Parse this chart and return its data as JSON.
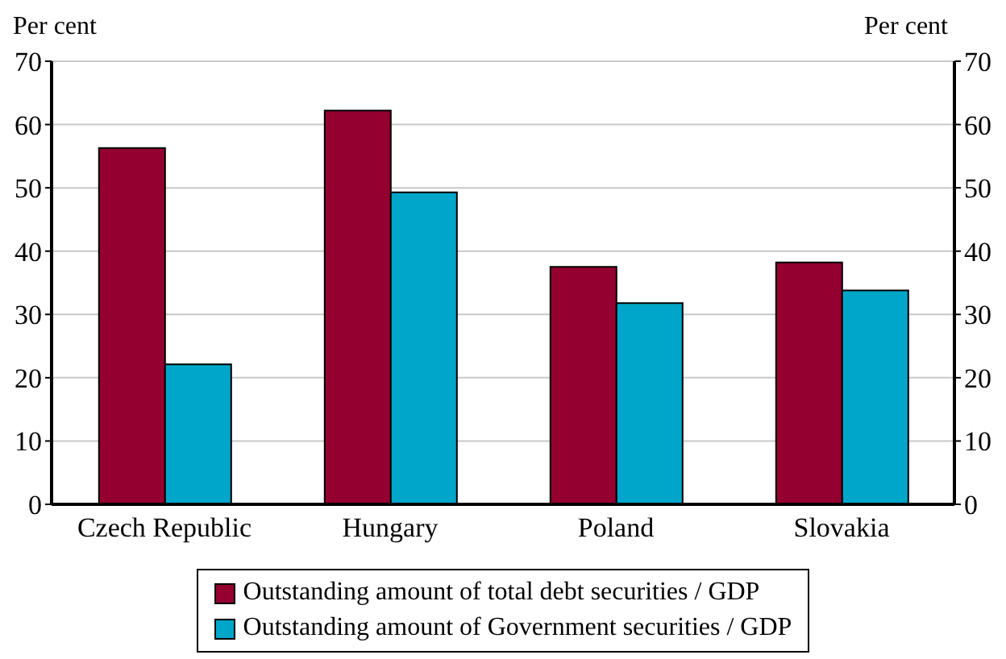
{
  "chart_data": {
    "type": "bar",
    "ylabel": "Per cent",
    "y2label": "Per cent",
    "categories": [
      "Czech Republic",
      "Hungary",
      "Poland",
      "Slovakia"
    ],
    "series": [
      {
        "name": "Outstanding amount of total debt securities / GDP",
        "color": "#940030",
        "values": [
          56.3,
          62.2,
          37.5,
          38.2
        ]
      },
      {
        "name": "Outstanding amount of Government securities / GDP",
        "color": "#00a6c9",
        "values": [
          22.1,
          49.3,
          31.8,
          33.8
        ]
      }
    ],
    "ylim": [
      0,
      70
    ],
    "yticks": [
      0,
      10,
      20,
      30,
      40,
      50,
      60,
      70
    ],
    "y2lim": [
      0,
      70
    ],
    "y2ticks": [
      0,
      10,
      20,
      30,
      40,
      50,
      60,
      70
    ],
    "grid": "y",
    "legend": "bottom"
  }
}
